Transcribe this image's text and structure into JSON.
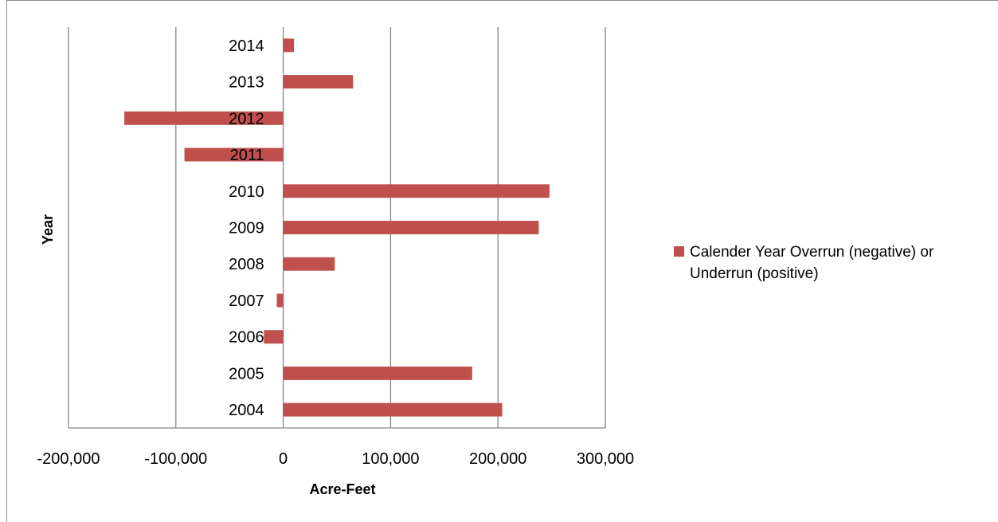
{
  "chart_data": {
    "type": "bar",
    "orientation": "horizontal",
    "categories": [
      "2004",
      "2005",
      "2006",
      "2007",
      "2008",
      "2009",
      "2010",
      "2011",
      "2012",
      "2013",
      "2014"
    ],
    "series": [
      {
        "name": "Calender Year Overrun (negative) or Underrun (positive)",
        "values": [
          204000,
          176000,
          -18000,
          -6000,
          48000,
          238000,
          248000,
          -92000,
          -148000,
          65000,
          10000
        ],
        "color": "#c0504d"
      }
    ],
    "xlabel": "Acre-Feet",
    "ylabel": "Year",
    "xlim": [
      -200000,
      300000
    ],
    "xticks": [
      "-200,000",
      "-100,000",
      "0",
      "100,000",
      "200,000",
      "300,000"
    ],
    "xtick_values": [
      -200000,
      -100000,
      0,
      100000,
      200000,
      300000
    ],
    "grid": "vertical",
    "legend_position": "right",
    "gridline_color": "#868686"
  }
}
